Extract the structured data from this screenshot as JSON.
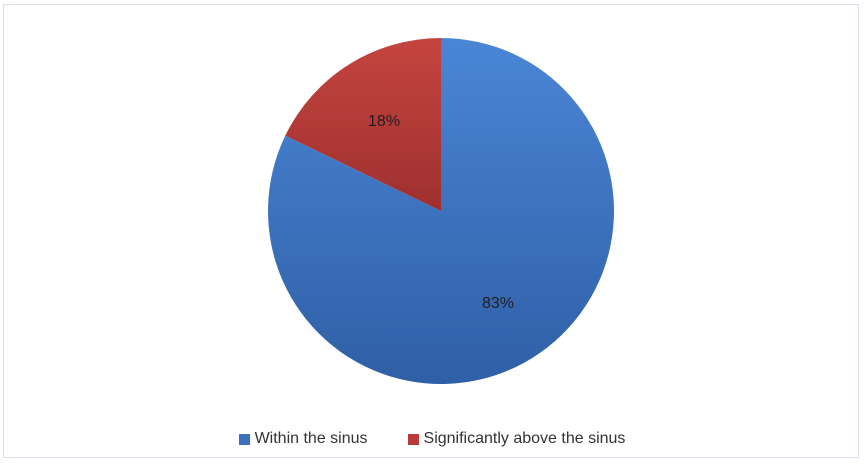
{
  "chart_data": {
    "type": "pie",
    "title": "",
    "slices": [
      {
        "name": "Within the sinus",
        "label": "83%",
        "value": 83,
        "color": "#3a6fc0"
      },
      {
        "name": "Significantly above the sinus",
        "label": "18%",
        "value": 18,
        "color": "#b53a38"
      }
    ],
    "legend_position": "bottom"
  }
}
